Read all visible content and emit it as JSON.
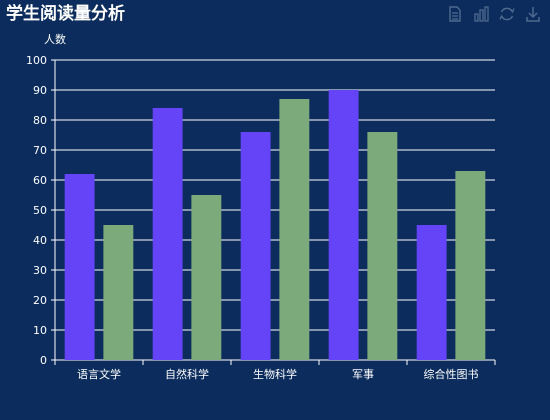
{
  "title": "学生阅读量分析",
  "toolbox": {
    "icons": [
      "data-view-icon",
      "bar-chart-icon",
      "restore-icon",
      "download-icon"
    ]
  },
  "colors": {
    "background": "#0b2c5c",
    "series1": "#6543f6",
    "series2": "#7daa7a",
    "text": "#ffffff",
    "icon": "#4e6a8f"
  },
  "chart_data": {
    "type": "bar",
    "title": "学生阅读量分析",
    "ylabel": "人数",
    "xlabel": "",
    "categories": [
      "语言文学",
      "自然科学",
      "生物科学",
      "军事",
      "综合性图书"
    ],
    "ylim": [
      0,
      100
    ],
    "yticks": [
      0,
      10,
      20,
      30,
      40,
      50,
      60,
      70,
      80,
      90,
      100
    ],
    "grid": true,
    "series": [
      {
        "values": [
          62,
          84,
          76,
          90,
          45
        ]
      },
      {
        "values": [
          45,
          55,
          87,
          76,
          63
        ]
      }
    ]
  }
}
